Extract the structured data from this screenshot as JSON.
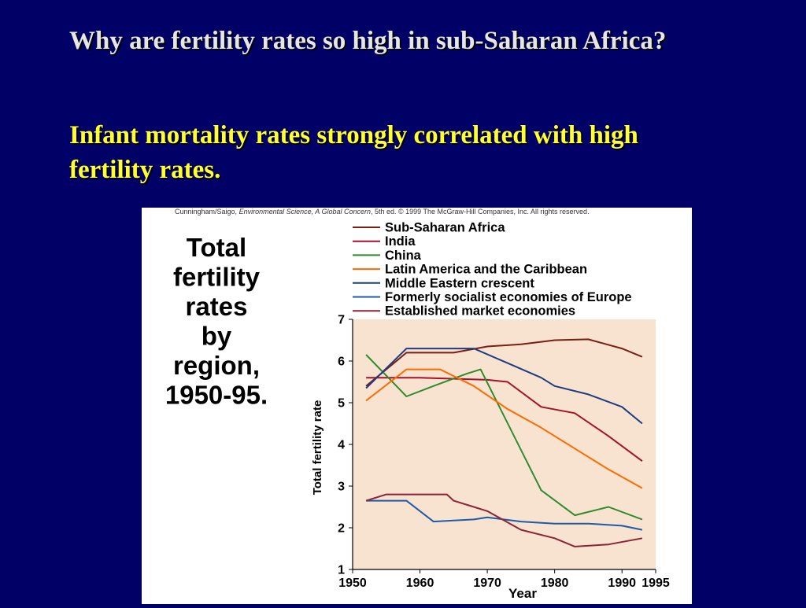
{
  "slide": {
    "question": "Why are fertility rates so high in sub-Saharan Africa?",
    "answer": "Infant mortality rates strongly correlated with high fertility rates."
  },
  "figure": {
    "credit_prefix": "Cunningham/Saigo, ",
    "credit_italic": "Environmental Science, A Global Concern",
    "credit_suffix": ", 5th ed. © 1999 The McGraw-Hill Companies, Inc. All rights reserved."
  },
  "colors": {
    "background": "#000066",
    "plot_bg": "#f8e3d0",
    "question": "#e6e6e6",
    "answer": "#ffff33"
  },
  "chart_data": {
    "type": "line",
    "title_lines": [
      "Total",
      "fertility",
      "rates",
      "by",
      "region,",
      "1950-95."
    ],
    "xlabel": "Year",
    "ylabel": "Total fertility rate",
    "xlim": [
      1950,
      1995
    ],
    "ylim": [
      1,
      7
    ],
    "xticks": [
      1950,
      1960,
      1970,
      1980,
      1990,
      1995
    ],
    "yticks": [
      1,
      2,
      3,
      4,
      5,
      6,
      7
    ],
    "grid": false,
    "legend_position": "top",
    "series": [
      {
        "name": "Sub-Saharan Africa",
        "color": "#7a1f16",
        "points": [
          [
            1952,
            5.4
          ],
          [
            1958,
            6.2
          ],
          [
            1965,
            6.2
          ],
          [
            1970,
            6.35
          ],
          [
            1975,
            6.4
          ],
          [
            1980,
            6.5
          ],
          [
            1985,
            6.52
          ],
          [
            1990,
            6.3
          ],
          [
            1993,
            6.1
          ]
        ]
      },
      {
        "name": "India",
        "color": "#a3122a",
        "points": [
          [
            1952,
            5.6
          ],
          [
            1960,
            5.6
          ],
          [
            1970,
            5.55
          ],
          [
            1973,
            5.5
          ],
          [
            1978,
            4.9
          ],
          [
            1983,
            4.75
          ],
          [
            1988,
            4.2
          ],
          [
            1993,
            3.6
          ]
        ]
      },
      {
        "name": "China",
        "color": "#2e8b2e",
        "points": [
          [
            1952,
            6.15
          ],
          [
            1958,
            5.15
          ],
          [
            1962,
            5.4
          ],
          [
            1967,
            5.7
          ],
          [
            1968,
            5.75
          ],
          [
            1969,
            5.8
          ],
          [
            1978,
            2.9
          ],
          [
            1983,
            2.3
          ],
          [
            1988,
            2.5
          ],
          [
            1993,
            2.2
          ]
        ]
      },
      {
        "name": "Latin America and the Caribbean",
        "color": "#ff6a00",
        "points": [
          [
            1952,
            5.05
          ],
          [
            1958,
            5.8
          ],
          [
            1963,
            5.8
          ],
          [
            1968,
            5.4
          ],
          [
            1973,
            4.85
          ],
          [
            1978,
            4.4
          ],
          [
            1983,
            3.9
          ],
          [
            1988,
            3.4
          ],
          [
            1993,
            2.95
          ]
        ]
      },
      {
        "name": "Middle Eastern crescent",
        "color": "#1e3c82",
        "points": [
          [
            1952,
            5.35
          ],
          [
            1958,
            6.3
          ],
          [
            1963,
            6.3
          ],
          [
            1968,
            6.3
          ],
          [
            1973,
            5.95
          ],
          [
            1978,
            5.6
          ],
          [
            1980,
            5.4
          ],
          [
            1985,
            5.2
          ],
          [
            1990,
            4.9
          ],
          [
            1993,
            4.5
          ]
        ]
      },
      {
        "name": "Formerly socialist economies of Europe",
        "color": "#1f5aa6",
        "points": [
          [
            1952,
            2.65
          ],
          [
            1958,
            2.65
          ],
          [
            1962,
            2.15
          ],
          [
            1968,
            2.2
          ],
          [
            1970,
            2.25
          ],
          [
            1975,
            2.15
          ],
          [
            1980,
            2.1
          ],
          [
            1985,
            2.1
          ],
          [
            1990,
            2.05
          ],
          [
            1993,
            1.95
          ]
        ]
      },
      {
        "name": "Established market economies",
        "color": "#8c2436",
        "points": [
          [
            1952,
            2.65
          ],
          [
            1955,
            2.8
          ],
          [
            1960,
            2.8
          ],
          [
            1964,
            2.8
          ],
          [
            1965,
            2.65
          ],
          [
            1968,
            2.5
          ],
          [
            1970,
            2.4
          ],
          [
            1975,
            1.95
          ],
          [
            1980,
            1.75
          ],
          [
            1983,
            1.55
          ],
          [
            1988,
            1.6
          ],
          [
            1993,
            1.75
          ]
        ]
      }
    ]
  }
}
